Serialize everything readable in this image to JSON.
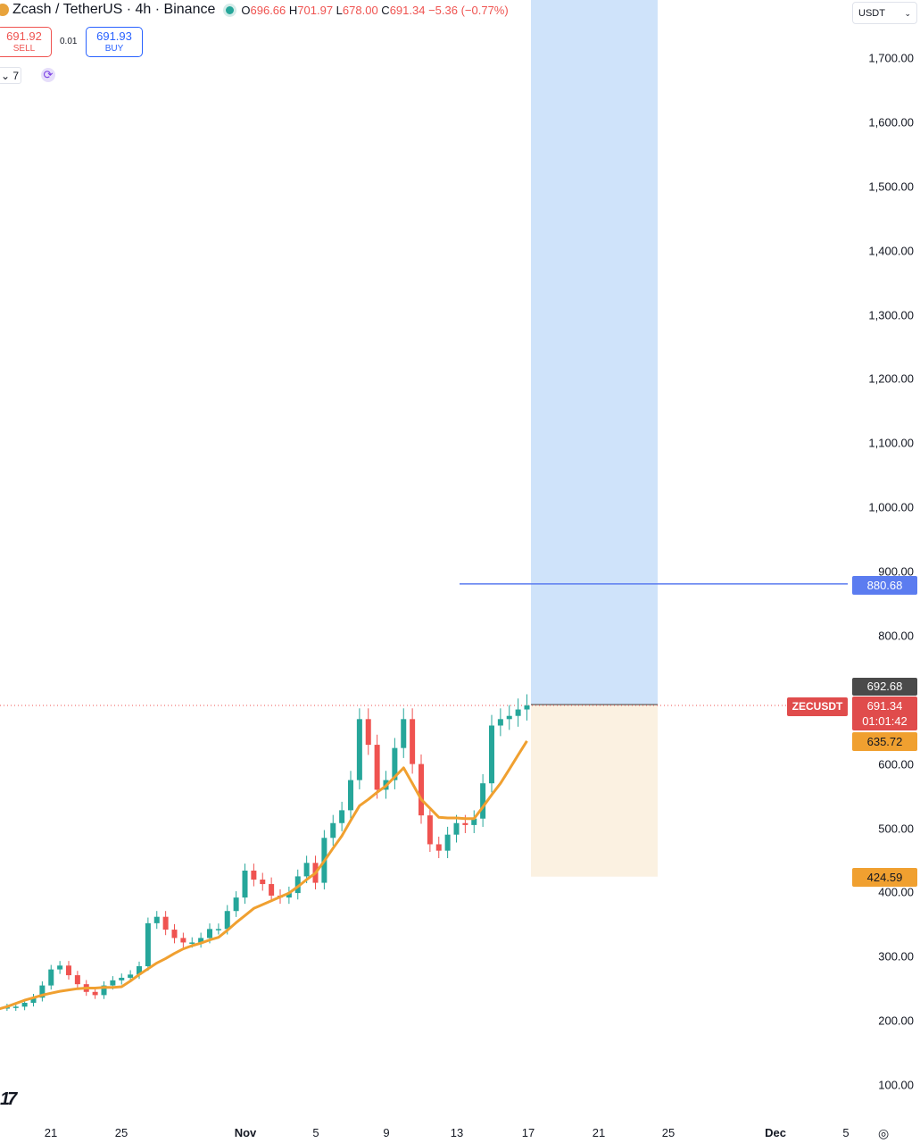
{
  "header": {
    "title": "Zcash / TetherUS · 4h · Binance",
    "open_label": "O",
    "open": "696.66",
    "high_label": "H",
    "high": "701.97",
    "low_label": "L",
    "low": "678.00",
    "close_label": "C",
    "close": "691.34",
    "change": "−5.36 (−0.77%)"
  },
  "trade": {
    "sell_price": "691.92",
    "sell_label": "SELL",
    "spread": "0.01",
    "buy_price": "691.93",
    "buy_label": "BUY"
  },
  "indicators": {
    "collapse_label": "7",
    "sync_icon": "refresh-icon"
  },
  "currency": {
    "value": "USDT"
  },
  "labels": {
    "symbol": "ZECUSDT",
    "entry": "692.68",
    "last_price": "691.34",
    "countdown": "01:01:42",
    "ma_value": "635.72",
    "target": "880.68",
    "stop": "424.59"
  },
  "colors": {
    "up": "#26a69a",
    "down": "#ef5350",
    "ma": "#f0a030",
    "target_zone": "#cfe3fa",
    "stop_zone": "#fbf1e1",
    "target_line": "#5b7cf0"
  },
  "chart_data": {
    "type": "candlestick",
    "title": "Zcash / TetherUS · 4h · Binance",
    "y_ticks": [
      "1,700.00",
      "1,600.00",
      "1,500.00",
      "1,400.00",
      "1,300.00",
      "1,200.00",
      "1,100.00",
      "1,000.00",
      "900.00",
      "800.00",
      "600.00",
      "500.00",
      "400.00",
      "300.00",
      "200.00",
      "100.00"
    ],
    "ylim": [
      100,
      1700
    ],
    "x_ticks": [
      {
        "label": "21",
        "bold": false
      },
      {
        "label": "25",
        "bold": false
      },
      {
        "label": "Nov",
        "bold": true
      },
      {
        "label": "5",
        "bold": false
      },
      {
        "label": "9",
        "bold": false
      },
      {
        "label": "13",
        "bold": false
      },
      {
        "label": "17",
        "bold": false
      },
      {
        "label": "21",
        "bold": false
      },
      {
        "label": "25",
        "bold": false
      },
      {
        "label": "Dec",
        "bold": true
      },
      {
        "label": "5",
        "bold": false
      }
    ],
    "x_start": "Oct 18",
    "x_step": "12h",
    "closes": [
      221,
      221,
      222,
      228,
      236,
      255,
      280,
      286,
      271,
      257,
      245,
      240,
      255,
      263,
      267,
      272,
      285,
      352,
      362,
      342,
      329,
      322,
      322,
      329,
      343,
      343,
      371,
      392,
      434,
      420,
      413,
      395,
      392,
      399,
      425,
      446,
      415,
      485,
      508,
      528,
      575,
      670,
      630,
      560,
      575,
      625,
      670,
      600,
      520,
      475,
      465,
      490,
      508,
      505,
      515,
      570,
      660,
      670,
      675,
      685,
      691.34
    ],
    "moving_average": [
      218,
      222,
      227,
      232,
      236,
      240,
      243,
      246,
      248,
      250,
      251,
      251,
      252,
      252,
      253,
      262,
      272,
      281,
      290,
      297,
      305,
      312,
      317,
      321,
      326,
      330,
      341,
      353,
      364,
      375,
      381,
      387,
      393,
      399,
      409,
      420,
      430,
      449,
      469,
      488,
      512,
      535,
      545,
      556,
      566,
      580,
      594,
      570,
      545,
      531,
      517,
      516,
      516,
      515,
      515,
      533,
      552,
      570,
      592,
      614,
      636
    ],
    "position": {
      "entry": 692.68,
      "target": 880.68,
      "stop": 424.59,
      "start": "Nov 17",
      "end": "Nov 24"
    },
    "grid": false
  }
}
